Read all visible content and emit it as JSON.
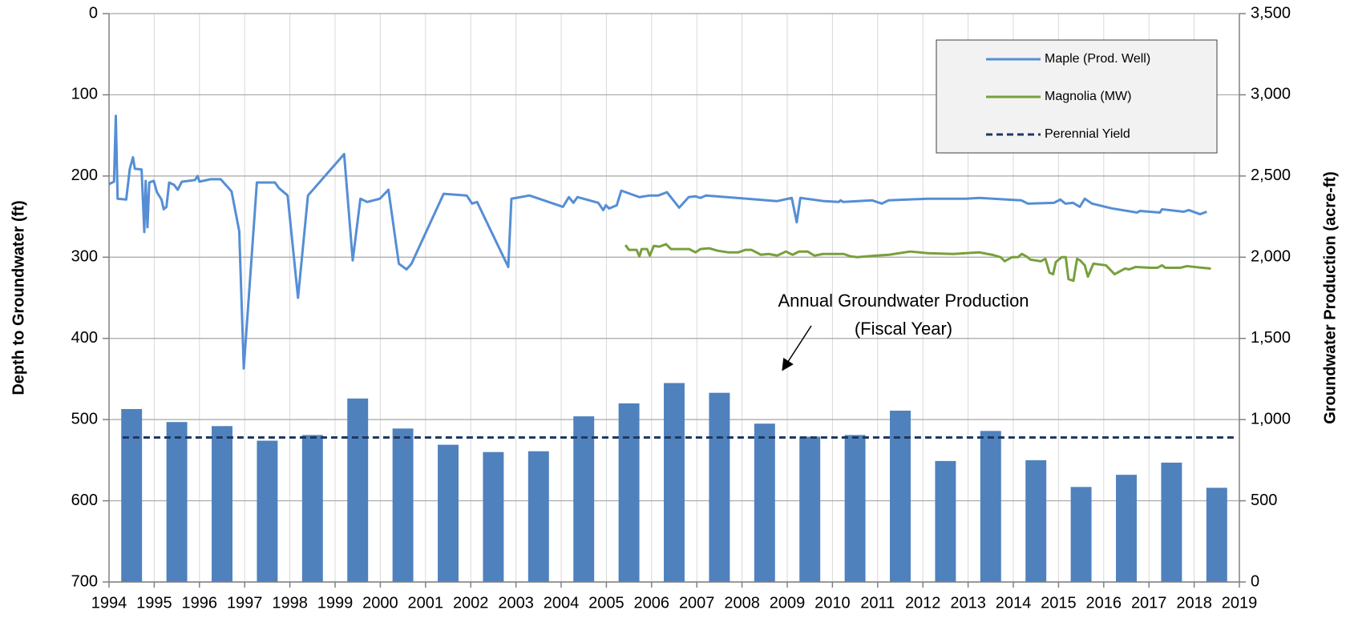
{
  "chart_data": {
    "type": "combo",
    "ylabel": "Depth to Groundwater (ft)",
    "y2label": "Groundwater Production (acre-ft)",
    "annotation": [
      "Annual Groundwater Production",
      "(Fiscal Year)"
    ],
    "xlim": [
      1994,
      2019
    ],
    "xticks": [
      1994,
      1995,
      1996,
      1997,
      1998,
      1999,
      2000,
      2001,
      2002,
      2003,
      2004,
      2005,
      2006,
      2007,
      2008,
      2009,
      2010,
      2011,
      2012,
      2013,
      2014,
      2015,
      2016,
      2017,
      2018,
      2019
    ],
    "ylim": [
      0,
      700
    ],
    "y_inverted": true,
    "yticks": [
      0,
      100,
      200,
      300,
      400,
      500,
      600,
      700
    ],
    "y2lim": [
      0,
      3500
    ],
    "y2ticks": [
      0,
      500,
      {
        "value": 1000,
        "label": "1,000"
      },
      {
        "value": 1500,
        "label": "1,500"
      },
      {
        "value": 2000,
        "label": "2,000"
      },
      {
        "value": 2500,
        "label": "2,500"
      },
      {
        "value": 3000,
        "label": "3,000"
      },
      {
        "value": 3500,
        "label": "3,500"
      }
    ],
    "grid": true,
    "legend": "upper right",
    "series": [
      {
        "type": "bar",
        "axis": "y2",
        "color": "#4f81bd",
        "x": [
          1994.5,
          1995.5,
          1996.5,
          1997.5,
          1998.5,
          1999.5,
          2000.5,
          2001.5,
          2002.5,
          2003.5,
          2004.5,
          2005.5,
          2006.5,
          2007.5,
          2008.5,
          2009.5,
          2010.5,
          2011.5,
          2012.5,
          2013.5,
          2014.5,
          2015.5,
          2016.5,
          2017.5,
          2018.5
        ],
        "values": [
          1065,
          985,
          960,
          870,
          905,
          1130,
          945,
          845,
          800,
          805,
          1020,
          1100,
          1225,
          1165,
          975,
          895,
          905,
          1055,
          745,
          930,
          750,
          585,
          660,
          735,
          580
        ]
      },
      {
        "name": "Maple (Prod. Well)",
        "type": "line",
        "axis": "y",
        "color": "#558ed5",
        "x": [
          1994.0,
          1994.11,
          1994.15,
          1994.19,
          1994.38,
          1994.46,
          1994.53,
          1994.57,
          1994.72,
          1994.78,
          1994.81,
          1994.85,
          1994.89,
          1994.99,
          1995.06,
          1995.16,
          1995.21,
          1995.27,
          1995.33,
          1995.44,
          1995.52,
          1995.61,
          1995.9,
          1995.96,
          1996.0,
          1996.24,
          1996.47,
          1996.71,
          1996.88,
          1996.98,
          1997.27,
          1997.67,
          1997.76,
          1997.95,
          1998.18,
          1998.4,
          1999.2,
          1999.39,
          1999.56,
          1999.71,
          1999.99,
          2000.18,
          2000.41,
          2000.58,
          2000.69,
          2001.4,
          2001.91,
          2002.03,
          2002.14,
          2002.83,
          2002.9,
          2003.3,
          2004.04,
          2004.17,
          2004.27,
          2004.36,
          2004.82,
          2004.93,
          2004.99,
          2005.06,
          2005.23,
          2005.33,
          2005.73,
          2005.96,
          2006.15,
          2006.34,
          2006.61,
          2006.82,
          2006.97,
          2007.08,
          2007.2,
          2008.11,
          2008.77,
          2009.1,
          2009.21,
          2009.29,
          2009.82,
          2010.14,
          2010.18,
          2010.24,
          2010.88,
          2011.09,
          2011.24,
          2012.1,
          2012.95,
          2013.25,
          2014.18,
          2014.32,
          2014.9,
          2015.04,
          2015.15,
          2015.32,
          2015.47,
          2015.58,
          2015.74,
          2016.04,
          2016.19,
          2016.74,
          2016.8,
          2017.24,
          2017.29,
          2017.77,
          2017.88,
          2018.13,
          2018.28
        ],
        "values": [
          210,
          207,
          126,
          228,
          229,
          191,
          177,
          191,
          192,
          269,
          206,
          263,
          208,
          206,
          220,
          229,
          241,
          238,
          208,
          211,
          217,
          207,
          205,
          200,
          207,
          204,
          204,
          219,
          268,
          437,
          208,
          208,
          215,
          224,
          350,
          224,
          173,
          304,
          228,
          232,
          228,
          217,
          308,
          315,
          308,
          222,
          224,
          234,
          232,
          312,
          228,
          224,
          238,
          226,
          233,
          226,
          233,
          242,
          236,
          240,
          236,
          218,
          226,
          224,
          224,
          220,
          239,
          226,
          225,
          227,
          224,
          228,
          231,
          227,
          257,
          227,
          231,
          232,
          230,
          232,
          230,
          234,
          230,
          228,
          228,
          227,
          230,
          234,
          233,
          229,
          234,
          233,
          238,
          228,
          234,
          238,
          240,
          245,
          243,
          245,
          241,
          244,
          242,
          247,
          244
        ]
      },
      {
        "name": "Magnolia (MW)",
        "type": "line",
        "axis": "y",
        "color": "#77a03c",
        "x": [
          2005.42,
          2005.5,
          2005.67,
          2005.73,
          2005.78,
          2005.9,
          2005.96,
          2006.05,
          2006.17,
          2006.32,
          2006.43,
          2006.83,
          2006.97,
          2007.08,
          2007.27,
          2007.46,
          2007.69,
          2007.92,
          2008.07,
          2008.21,
          2008.42,
          2008.59,
          2008.78,
          2008.97,
          2009.12,
          2009.26,
          2009.45,
          2009.6,
          2009.79,
          2010.02,
          2010.25,
          2010.4,
          2010.55,
          2010.97,
          2011.25,
          2011.72,
          2012.1,
          2012.67,
          2013.24,
          2013.53,
          2013.72,
          2013.81,
          2013.97,
          2014.1,
          2014.19,
          2014.29,
          2014.38,
          2014.61,
          2014.71,
          2014.8,
          2014.88,
          2014.94,
          2015.07,
          2015.16,
          2015.22,
          2015.33,
          2015.41,
          2015.48,
          2015.58,
          2015.65,
          2015.77,
          2016.05,
          2016.24,
          2016.47,
          2016.56,
          2016.71,
          2017.04,
          2017.19,
          2017.29,
          2017.36,
          2017.7,
          2017.84,
          2018.18,
          2018.37
        ],
        "values": [
          285,
          291,
          291,
          299,
          290,
          290,
          298,
          286,
          287,
          284,
          290,
          290,
          294,
          290,
          289,
          292,
          294,
          294,
          291,
          291,
          297,
          296,
          298,
          293,
          297,
          293,
          293,
          298,
          296,
          296,
          296,
          299,
          300,
          298,
          297,
          293,
          295,
          296,
          294,
          297,
          300,
          305,
          300,
          300,
          296,
          299,
          303,
          305,
          302,
          319,
          321,
          306,
          300,
          300,
          327,
          329,
          302,
          304,
          310,
          324,
          308,
          310,
          321,
          314,
          315,
          312,
          313,
          313,
          310,
          313,
          313,
          311,
          313,
          314
        ]
      },
      {
        "name": "Perennial Yield",
        "type": "line",
        "axis": "y2",
        "color": "#1f3864",
        "dashed": true,
        "x": [
          1994.3,
          2018.9
        ],
        "values": [
          890,
          890
        ]
      }
    ]
  }
}
